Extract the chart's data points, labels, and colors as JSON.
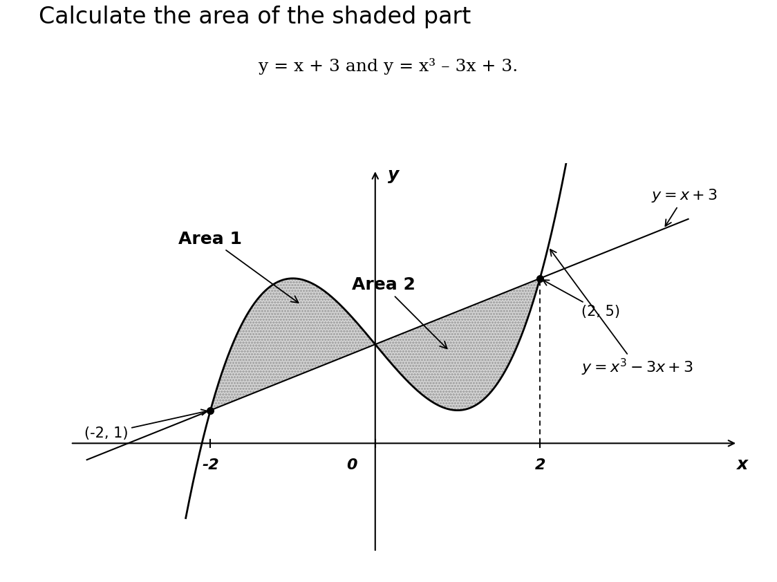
{
  "title": "Calculate the area of the shaded part",
  "subtitle": "y = x + 3 and y = x³ – 3x + 3.",
  "label_line": "y = x + 3",
  "label_cubic": "y = x³ – 3x + 3",
  "area1_label": "Area 1",
  "area2_label": "Area 2",
  "point1": [
    -2,
    1
  ],
  "point2": [
    2,
    5
  ],
  "x_tick_pos": [
    -2,
    0,
    2
  ],
  "xlim": [
    -3.8,
    4.5
  ],
  "ylim": [
    -3.5,
    8.5
  ],
  "shade_color": "#d8d8d8",
  "line_color": "#000000",
  "background_color": "#ffffff",
  "title_fontsize": 24,
  "subtitle_fontsize": 18,
  "label_fontsize": 16,
  "annotation_fontsize": 15,
  "tick_fontsize": 16
}
